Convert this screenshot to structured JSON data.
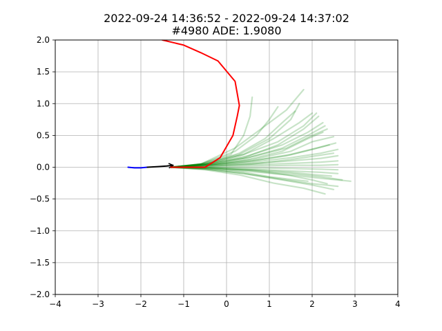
{
  "title": {
    "line1": "2022-09-24 14:36:52 - 2022-09-24 14:37:02",
    "line2": "#4980 ADE: 1.9080"
  },
  "chart_data": {
    "type": "line",
    "title": "2022-09-24 14:36:52 - 2022-09-24 14:37:02\n#4980 ADE: 1.9080",
    "xlim": [
      -4,
      4
    ],
    "ylim": [
      -2,
      2
    ],
    "xticks": [
      -4,
      -3,
      -2,
      -1,
      0,
      1,
      2,
      3,
      4
    ],
    "yticks": [
      2.0,
      1.5,
      1.0,
      0.5,
      0.0,
      -0.5,
      -1.0,
      -1.5,
      -2.0
    ],
    "xtick_labels": [
      "−4",
      "−3",
      "−2",
      "−1",
      "0",
      "1",
      "2",
      "3",
      "4"
    ],
    "ytick_labels": [
      "2.0",
      "1.5",
      "1.0",
      "0.5",
      "0.0",
      "−0.5",
      "−1.0",
      "−1.5",
      "−2.0"
    ],
    "grid": true,
    "colors": {
      "past": "#0000ff",
      "current": "#000000",
      "ground_truth": "#ff0000",
      "samples": "#008000"
    },
    "series": [
      {
        "role": "past-trajectory",
        "color": "#0000ff",
        "x": [
          -2.3,
          -2.15,
          -2.0,
          -1.85
        ],
        "y": [
          0.0,
          -0.01,
          -0.01,
          0.0
        ]
      },
      {
        "role": "current-heading",
        "color": "#000000",
        "x": [
          -1.85,
          -1.6,
          -1.4,
          -1.25
        ],
        "y": [
          0.0,
          0.01,
          0.02,
          0.03
        ]
      },
      {
        "role": "ground-truth-future",
        "color": "#ff0000",
        "x": [
          -1.3,
          -0.9,
          -0.5,
          -0.15,
          0.15,
          0.25,
          0.3,
          0.2,
          -0.2,
          -0.6,
          -1.0,
          -1.5
        ],
        "y": [
          0.0,
          0.0,
          0.0,
          0.15,
          0.5,
          0.8,
          0.97,
          1.35,
          1.67,
          1.8,
          1.92,
          2.0
        ]
      }
    ],
    "samples": [
      {
        "x": [
          -1.3,
          -0.6,
          0.2,
          0.8,
          1.4,
          1.8
        ],
        "y": [
          0.0,
          0.05,
          0.3,
          0.6,
          0.9,
          1.22
        ]
      },
      {
        "x": [
          -1.3,
          -0.6,
          0.1,
          0.4,
          0.55,
          0.6
        ],
        "y": [
          0.0,
          0.05,
          0.2,
          0.5,
          0.8,
          1.1
        ]
      },
      {
        "x": [
          -1.3,
          -0.6,
          0.2,
          0.7,
          1.0,
          1.2
        ],
        "y": [
          0.0,
          0.05,
          0.25,
          0.5,
          0.75,
          0.95
        ]
      },
      {
        "x": [
          -1.3,
          -0.6,
          0.3,
          1.0,
          1.5,
          1.7
        ],
        "y": [
          0.0,
          0.05,
          0.2,
          0.45,
          0.75,
          1.0
        ]
      },
      {
        "x": [
          -1.3,
          -0.5,
          0.4,
          1.2,
          1.8,
          2.1
        ],
        "y": [
          0.0,
          0.05,
          0.2,
          0.4,
          0.65,
          0.85
        ]
      },
      {
        "x": [
          -1.3,
          -0.5,
          0.4,
          1.2,
          1.8,
          2.15
        ],
        "y": [
          0.0,
          0.05,
          0.15,
          0.35,
          0.6,
          0.8
        ]
      },
      {
        "x": [
          -1.3,
          -0.5,
          0.5,
          1.3,
          1.9,
          2.3
        ],
        "y": [
          0.0,
          0.04,
          0.15,
          0.3,
          0.5,
          0.65
        ]
      },
      {
        "x": [
          -1.3,
          -0.4,
          0.6,
          1.5,
          2.0,
          2.5
        ],
        "y": [
          0.0,
          0.04,
          0.12,
          0.25,
          0.4,
          0.48
        ]
      },
      {
        "x": [
          -1.3,
          -0.4,
          0.6,
          1.5,
          2.1,
          2.55
        ],
        "y": [
          0.0,
          0.04,
          0.1,
          0.2,
          0.3,
          0.38
        ]
      },
      {
        "x": [
          -1.3,
          -0.4,
          0.6,
          1.5,
          2.2,
          2.6
        ],
        "y": [
          0.0,
          0.03,
          0.08,
          0.15,
          0.22,
          0.28
        ]
      },
      {
        "x": [
          -1.3,
          -0.4,
          0.6,
          1.5,
          2.2,
          2.6
        ],
        "y": [
          0.0,
          0.03,
          0.06,
          0.1,
          0.14,
          0.18
        ]
      },
      {
        "x": [
          -1.3,
          -0.4,
          0.6,
          1.5,
          2.2,
          2.6
        ],
        "y": [
          0.0,
          0.02,
          0.04,
          0.06,
          0.08,
          0.1
        ]
      },
      {
        "x": [
          -1.3,
          -0.4,
          0.6,
          1.5,
          2.2,
          2.6
        ],
        "y": [
          0.0,
          0.01,
          0.02,
          0.03,
          0.03,
          0.04
        ]
      },
      {
        "x": [
          -1.3,
          -0.4,
          0.6,
          1.5,
          2.2,
          2.6
        ],
        "y": [
          0.0,
          0.0,
          -0.01,
          -0.02,
          -0.03,
          -0.04
        ]
      },
      {
        "x": [
          -1.3,
          -0.4,
          0.6,
          1.5,
          2.2,
          2.6
        ],
        "y": [
          0.0,
          -0.01,
          -0.03,
          -0.06,
          -0.08,
          -0.1
        ]
      },
      {
        "x": [
          -1.3,
          -0.4,
          0.6,
          1.5,
          2.2,
          2.7
        ],
        "y": [
          0.0,
          -0.02,
          -0.05,
          -0.1,
          -0.15,
          -0.2
        ]
      },
      {
        "x": [
          -1.3,
          -0.4,
          0.6,
          1.6,
          2.3,
          2.9
        ],
        "y": [
          0.0,
          -0.02,
          -0.07,
          -0.13,
          -0.18,
          -0.22
        ]
      },
      {
        "x": [
          -1.3,
          -0.5,
          0.4,
          1.3,
          2.0,
          2.5
        ],
        "y": [
          0.0,
          -0.03,
          -0.1,
          -0.2,
          -0.28,
          -0.35
        ]
      },
      {
        "x": [
          -1.3,
          -0.5,
          0.3,
          1.1,
          1.8,
          2.3
        ],
        "y": [
          0.0,
          -0.04,
          -0.12,
          -0.25,
          -0.33,
          -0.42
        ]
      },
      {
        "x": [
          -1.3,
          -0.5,
          0.4,
          1.2,
          1.9,
          2.6
        ],
        "y": [
          0.0,
          -0.03,
          -0.1,
          -0.18,
          -0.25,
          -0.3
        ]
      },
      {
        "x": [
          -1.3,
          -0.5,
          0.4,
          1.0,
          1.6,
          1.9
        ],
        "y": [
          0.0,
          -0.02,
          -0.08,
          -0.15,
          -0.2,
          -0.22
        ]
      },
      {
        "x": [
          -1.3,
          -0.4,
          0.5,
          1.4,
          2.0,
          2.35
        ],
        "y": [
          0.0,
          0.05,
          0.15,
          0.3,
          0.5,
          0.6
        ]
      },
      {
        "x": [
          -1.3,
          -0.4,
          0.5,
          1.3,
          1.9,
          2.25
        ],
        "y": [
          0.0,
          0.04,
          0.12,
          0.25,
          0.45,
          0.55
        ]
      },
      {
        "x": [
          -1.3,
          -0.5,
          0.4,
          1.1,
          1.7,
          2.0
        ],
        "y": [
          0.0,
          0.05,
          0.2,
          0.45,
          0.7,
          0.85
        ]
      },
      {
        "x": [
          -1.3,
          -0.5,
          0.3,
          0.9,
          1.3,
          1.6
        ],
        "y": [
          0.0,
          0.05,
          0.22,
          0.45,
          0.7,
          0.88
        ]
      },
      {
        "x": [
          -1.3,
          -0.5,
          0.5,
          1.4,
          2.0,
          2.4
        ],
        "y": [
          0.0,
          0.03,
          0.09,
          0.18,
          0.28,
          0.35
        ]
      },
      {
        "x": [
          -1.3,
          -0.4,
          0.6,
          1.5,
          2.1,
          2.5
        ],
        "y": [
          0.0,
          0.02,
          0.05,
          0.12,
          0.18,
          0.22
        ]
      },
      {
        "x": [
          -1.3,
          -0.4,
          0.6,
          1.5,
          2.1,
          2.45
        ],
        "y": [
          0.0,
          -0.01,
          -0.04,
          -0.08,
          -0.12,
          -0.14
        ]
      },
      {
        "x": [
          -1.3,
          -0.4,
          0.6,
          1.4,
          2.0,
          2.35
        ],
        "y": [
          0.0,
          -0.01,
          -0.05,
          -0.12,
          -0.2,
          -0.26
        ]
      },
      {
        "x": [
          -1.3,
          -0.4,
          0.5,
          1.3,
          1.9,
          2.25
        ],
        "y": [
          0.0,
          0.06,
          0.18,
          0.35,
          0.55,
          0.7
        ]
      }
    ]
  }
}
